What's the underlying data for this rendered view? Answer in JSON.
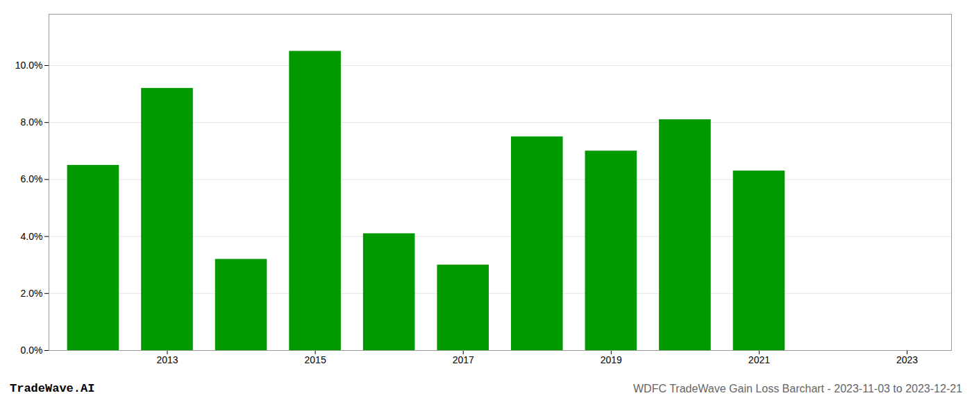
{
  "chart_data": {
    "type": "bar",
    "title": "WDFC TradeWave Gain Loss Barchart - 2023-11-03 to 2023-12-21",
    "annotations": [
      "TradeWave.AI"
    ],
    "x": [
      2012,
      2013,
      2014,
      2015,
      2016,
      2017,
      2018,
      2019,
      2020,
      2021,
      2022
    ],
    "values": [
      0.065,
      0.092,
      0.032,
      0.105,
      0.041,
      0.03,
      0.075,
      0.07,
      0.081,
      0.063,
      null
    ],
    "color": "#009900",
    "xlim": [
      2011.4,
      2023.6
    ],
    "xticks": [
      2013,
      2015,
      2017,
      2019,
      2021,
      2023
    ],
    "ylim": [
      0,
      0.118
    ],
    "yticks": [
      {
        "value": 0.0,
        "label": "0.0%"
      },
      {
        "value": 0.02,
        "label": "2.0%"
      },
      {
        "value": 0.04,
        "label": "4.0%"
      },
      {
        "value": 0.06,
        "label": "6.0%"
      },
      {
        "value": 0.08,
        "label": "8.0%"
      },
      {
        "value": 0.1,
        "label": "10.0%"
      }
    ],
    "grid": true
  }
}
